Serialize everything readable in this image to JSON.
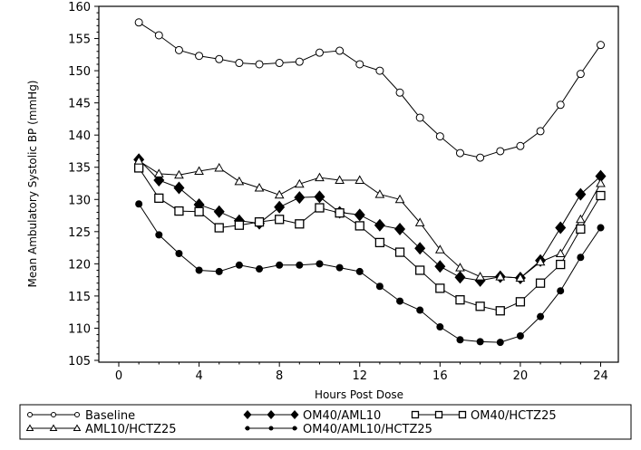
{
  "chart_data": {
    "type": "line",
    "title": "",
    "xlabel": "Hours Post Dose",
    "ylabel": "Mean Ambulatory Systolic BP (mmHg)",
    "xlim": [
      0,
      24
    ],
    "ylim": [
      105,
      160
    ],
    "xticks": [
      0,
      4,
      8,
      12,
      16,
      20,
      24
    ],
    "yticks": [
      105,
      110,
      115,
      120,
      125,
      130,
      135,
      140,
      145,
      150,
      155,
      160
    ],
    "grid": false,
    "legend_position": "bottom",
    "x": [
      1,
      2,
      3,
      4,
      5,
      6,
      7,
      8,
      9,
      10,
      11,
      12,
      13,
      14,
      15,
      16,
      17,
      18,
      19,
      20,
      21,
      22,
      23,
      24
    ],
    "series": [
      {
        "name": "Baseline",
        "marker": "open-circle",
        "values": [
          157.5,
          155.5,
          153.2,
          152.3,
          151.8,
          151.2,
          151.0,
          151.2,
          151.4,
          152.8,
          153.1,
          151.0,
          150.0,
          146.6,
          142.7,
          139.8,
          137.2,
          136.5,
          137.5,
          138.3,
          140.6,
          144.7,
          149.5,
          154.0
        ]
      },
      {
        "name": "OM40/AML10",
        "marker": "filled-diamond",
        "values": [
          136.2,
          133.0,
          131.8,
          129.2,
          128.1,
          126.7,
          126.3,
          128.8,
          130.3,
          130.4,
          128.0,
          127.6,
          126.0,
          125.4,
          122.4,
          119.6,
          117.9,
          117.4,
          118.0,
          117.8,
          120.5,
          125.6,
          130.8,
          133.6
        ]
      },
      {
        "name": "OM40/HCTZ25",
        "marker": "open-square",
        "values": [
          134.9,
          130.2,
          128.2,
          128.1,
          125.6,
          126.0,
          126.5,
          126.9,
          126.2,
          128.7,
          127.9,
          125.9,
          123.3,
          121.8,
          119.0,
          116.2,
          114.4,
          113.4,
          112.7,
          114.1,
          117.0,
          119.9,
          125.4,
          130.6
        ]
      },
      {
        "name": "AML10/HCTZ25",
        "marker": "open-triangle",
        "values": [
          136.0,
          134.0,
          133.8,
          134.4,
          134.9,
          132.8,
          131.8,
          130.7,
          132.4,
          133.4,
          133.0,
          133.0,
          130.8,
          130.0,
          126.4,
          122.2,
          119.4,
          118.0,
          118.0,
          117.8,
          120.3,
          121.6,
          126.9,
          132.5
        ]
      },
      {
        "name": "OM40/AML10/HCTZ25",
        "marker": "filled-circle",
        "values": [
          129.3,
          124.5,
          121.6,
          119.0,
          118.8,
          119.8,
          119.2,
          119.8,
          119.8,
          120.0,
          119.4,
          118.8,
          116.5,
          114.2,
          112.8,
          110.2,
          108.2,
          107.9,
          107.8,
          108.8,
          111.8,
          115.8,
          121.0,
          125.6
        ]
      }
    ]
  }
}
